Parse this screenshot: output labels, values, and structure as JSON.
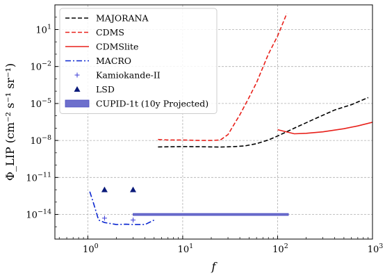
{
  "chart_data": {
    "type": "line",
    "xlabel": "f",
    "ylabel": "Φ_LIP (cm⁻² s⁻¹ sr⁻¹)",
    "x_scale": "log",
    "y_scale": "log",
    "xlim": [
      0.45,
      1000
    ],
    "ylim": [
      1e-16,
      1000.0
    ],
    "grid": true,
    "legend_position": "top-left",
    "x_ticks": [
      {
        "value": 1,
        "label": "10^0"
      },
      {
        "value": 10,
        "label": "10^1"
      },
      {
        "value": 100,
        "label": "10^2"
      },
      {
        "value": 1000,
        "label": "10^3"
      }
    ],
    "y_ticks": [
      {
        "value": 1e-14,
        "label": "10^-14"
      },
      {
        "value": 1e-11,
        "label": "10^-11"
      },
      {
        "value": 1e-08,
        "label": "10^-8"
      },
      {
        "value": 1e-05,
        "label": "10^-5"
      },
      {
        "value": 0.01,
        "label": "10^-2"
      },
      {
        "value": 10,
        "label": "10^1"
      }
    ],
    "series": [
      {
        "name": "MAJORANA",
        "style": "dashed",
        "color": "#000000",
        "points": [
          [
            5.5,
            3e-09
          ],
          [
            10,
            3.2e-09
          ],
          [
            15,
            3.1e-09
          ],
          [
            25,
            2.9e-09
          ],
          [
            35,
            3.2e-09
          ],
          [
            45,
            3.6e-09
          ],
          [
            60,
            5.5e-09
          ],
          [
            80,
            1.1e-08
          ],
          [
            100,
            2.3e-08
          ],
          [
            150,
            1e-07
          ],
          [
            250,
            6e-07
          ],
          [
            400,
            3e-06
          ],
          [
            600,
            8e-06
          ],
          [
            900,
            3e-05
          ]
        ]
      },
      {
        "name": "CDMS",
        "style": "dashed",
        "color": "#e8201a",
        "points": [
          [
            5.5,
            1.2e-08
          ],
          [
            7,
            1.1e-08
          ],
          [
            10,
            1.1e-08
          ],
          [
            15,
            1e-08
          ],
          [
            20,
            1e-08
          ],
          [
            25,
            1.1e-08
          ],
          [
            30,
            3e-08
          ],
          [
            34,
            1.5e-07
          ],
          [
            40,
            1.2e-06
          ],
          [
            50,
            3e-05
          ],
          [
            60,
            0.0005
          ],
          [
            80,
            0.1
          ],
          [
            100,
            3.0
          ],
          [
            125,
            200.0
          ]
        ]
      },
      {
        "name": "CDMSlite",
        "style": "solid",
        "color": "#e8201a",
        "points": [
          [
            100,
            7.5e-08
          ],
          [
            150,
            3.5e-08
          ],
          [
            200,
            3.8e-08
          ],
          [
            300,
            5e-08
          ],
          [
            500,
            9e-08
          ],
          [
            700,
            1.5e-07
          ],
          [
            1000,
            3e-07
          ]
        ]
      },
      {
        "name": "MACRO",
        "style": "dashdot",
        "color": "#0a26d0",
        "points": [
          [
            1.05,
            7e-13
          ],
          [
            1.15,
            8e-14
          ],
          [
            1.3,
            3.5e-15
          ],
          [
            1.5,
            2.2e-15
          ],
          [
            2,
            1.5e-15
          ],
          [
            2.5,
            1.6e-15
          ],
          [
            3,
            1.5e-15
          ],
          [
            4,
            1.5e-15
          ],
          [
            5,
            3.5e-15
          ]
        ]
      },
      {
        "name": "Kamiokande-II",
        "style": "plus-markers",
        "color": "#3a3ad6",
        "points": [
          [
            1.5,
            5e-15
          ],
          [
            3,
            3.5e-15
          ]
        ]
      },
      {
        "name": "LSD",
        "style": "triangle-markers",
        "color": "#0a1a7a",
        "points": [
          [
            1.5,
            1e-12
          ],
          [
            3,
            1e-12
          ]
        ]
      },
      {
        "name": "CUPID-1t (10y Projected)",
        "style": "band",
        "color": "#6d6fcc",
        "x_range": [
          3,
          130
        ],
        "y_range": [
          8.2e-15,
          1.2e-14
        ]
      }
    ]
  }
}
